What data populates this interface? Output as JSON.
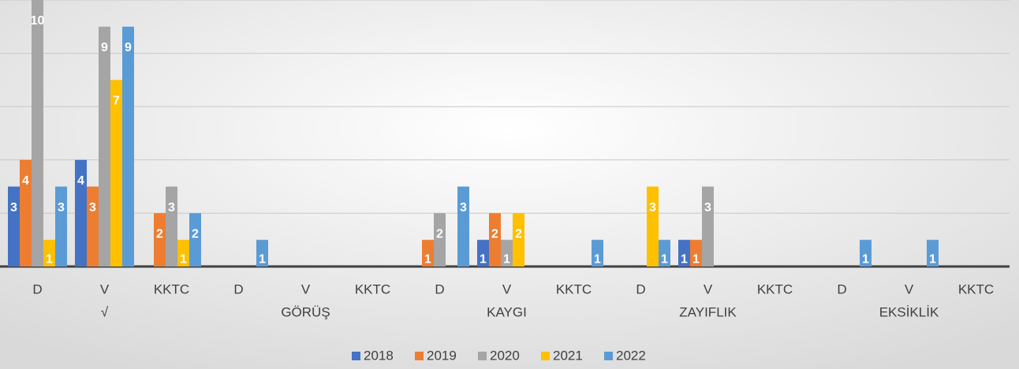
{
  "chart_data": {
    "type": "bar",
    "categories": [
      "D",
      "V",
      "KKTC",
      "D",
      "V",
      "KKTC",
      "D",
      "V",
      "KKTC",
      "D",
      "V",
      "KKTC",
      "D",
      "V",
      "KKTC"
    ],
    "group_labels": [
      "√",
      "GÖRÜŞ",
      "KAYGI",
      "ZAYIFLIK",
      "EKSİKLİK"
    ],
    "series": [
      {
        "name": "2018",
        "color": "#4472c4",
        "values": [
          3,
          4,
          null,
          null,
          null,
          null,
          null,
          1,
          null,
          null,
          1,
          null,
          null,
          null,
          null
        ]
      },
      {
        "name": "2019",
        "color": "#ed7d31",
        "values": [
          4,
          3,
          2,
          null,
          null,
          null,
          1,
          2,
          null,
          null,
          1,
          null,
          null,
          null,
          null
        ]
      },
      {
        "name": "2020",
        "color": "#a5a5a5",
        "values": [
          10,
          9,
          3,
          null,
          null,
          null,
          2,
          1,
          null,
          null,
          3,
          null,
          null,
          null,
          null
        ]
      },
      {
        "name": "2021",
        "color": "#ffc000",
        "values": [
          1,
          7,
          1,
          null,
          null,
          null,
          null,
          2,
          null,
          3,
          null,
          null,
          null,
          null,
          null
        ]
      },
      {
        "name": "2022",
        "color": "#5b9bd5",
        "values": [
          3,
          9,
          2,
          1,
          null,
          null,
          3,
          null,
          1,
          1,
          null,
          null,
          1,
          1,
          null
        ]
      }
    ],
    "ylim": [
      0,
      10
    ],
    "yticks": [
      0,
      2,
      4,
      6,
      8,
      10
    ],
    "grid": true,
    "legend": "bottom"
  }
}
